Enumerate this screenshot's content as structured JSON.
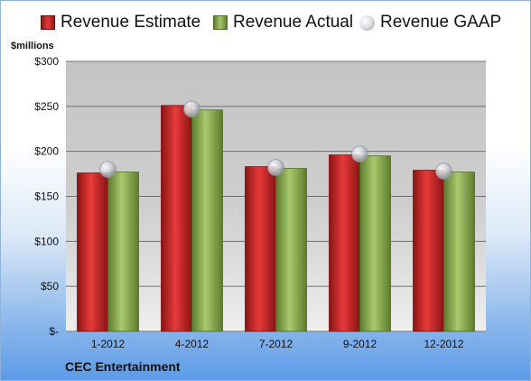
{
  "chart_data": {
    "type": "bar",
    "title": "",
    "ylabel": "$millions",
    "xlabel": "",
    "footer_label": "CEC Entertainment",
    "categories": [
      "1-2012",
      "4-2012",
      "7-2012",
      "9-2012",
      "12-2012"
    ],
    "series": [
      {
        "name": "Revenue Estimate",
        "kind": "bar",
        "values": [
          176,
          251,
          183,
          196,
          179
        ]
      },
      {
        "name": "Revenue Actual",
        "kind": "bar",
        "values": [
          177,
          246,
          181,
          195,
          177
        ]
      },
      {
        "name": "Revenue GAAP",
        "kind": "marker",
        "values": [
          180,
          247,
          182,
          197,
          178
        ]
      }
    ],
    "ylim": [
      0,
      300
    ],
    "yticks": [
      0,
      50,
      100,
      150,
      200,
      250,
      300
    ],
    "ytick_labels": [
      "$-",
      "$50",
      "$100",
      "$150",
      "$200",
      "$250",
      "$300"
    ],
    "grid": true,
    "legend_position": "top",
    "colors": {
      "estimate": "#c62020",
      "actual": "#8fb052",
      "gaap": "#c9ccd2",
      "plot_top": "#c8c8c8",
      "plot_bottom": "#eaeaea"
    }
  }
}
